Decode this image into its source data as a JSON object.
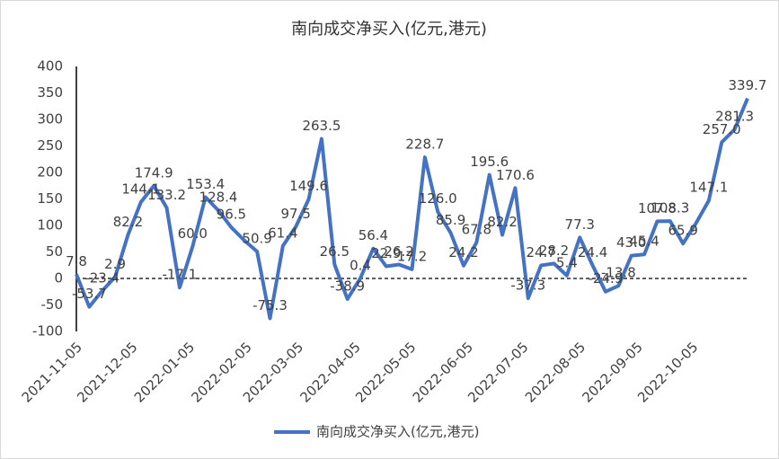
{
  "chart_data": {
    "type": "line",
    "title": "南向成交净买入(亿元,港元)",
    "x": [
      "2021-11-05",
      "2021-11-12",
      "2021-11-19",
      "2021-11-26",
      "2021-12-03",
      "2021-12-10",
      "2021-12-17",
      "2021-12-24",
      "2021-12-31",
      "2022-01-07",
      "2022-01-14",
      "2022-01-21",
      "2022-01-28",
      "2022-02-04",
      "2022-02-11",
      "2022-02-18",
      "2022-02-25",
      "2022-03-04",
      "2022-03-11",
      "2022-03-18",
      "2022-03-25",
      "2022-04-01",
      "2022-04-08",
      "2022-04-15",
      "2022-04-22",
      "2022-04-29",
      "2022-05-06",
      "2022-05-13",
      "2022-05-20",
      "2022-05-27",
      "2022-06-03",
      "2022-06-10",
      "2022-06-17",
      "2022-06-24",
      "2022-07-01",
      "2022-07-08",
      "2022-07-15",
      "2022-07-22",
      "2022-07-29",
      "2022-08-05",
      "2022-08-12",
      "2022-08-19",
      "2022-08-26",
      "2022-09-02",
      "2022-09-09",
      "2022-09-16",
      "2022-09-23",
      "2022-09-30",
      "2022-10-07",
      "2022-10-14",
      "2022-10-21",
      "2022-10-28",
      "2022-11-04"
    ],
    "series": [
      {
        "name": "南向成交净买入(亿元,港元)",
        "color": "#4472c4",
        "values": [
          7.8,
          -53.7,
          -23.4,
          2.9,
          82.2,
          144.1,
          174.9,
          133.2,
          -17.1,
          60.0,
          153.4,
          128.4,
          96.5,
          72,
          50.9,
          -75.3,
          61.4,
          97.5,
          149.6,
          263.5,
          26.5,
          -38.9,
          0.4,
          56.4,
          22.9,
          26.2,
          17.2,
          228.7,
          126.0,
          85.9,
          24.2,
          67.8,
          195.6,
          82.2,
          170.6,
          -37.3,
          24.7,
          28.2,
          5.4,
          77.3,
          24.4,
          -24.9,
          -13.8,
          43.0,
          45.4,
          107.8,
          108.3,
          65.9,
          104,
          147.1,
          257.0,
          281.3,
          339.7
        ],
        "value_labels": [
          "7.8",
          "-53.7",
          "-23.4",
          "2.9",
          "82.2",
          "144.1",
          "174.9",
          "133.2",
          "-17.1",
          "60.0",
          "153.4",
          "128.4",
          "96.5",
          null,
          "50.9",
          "-75.3",
          "61.4",
          "97.5",
          "149.6",
          "263.5",
          "26.5",
          "-38.9",
          "0.4",
          "56.4",
          "22.9",
          "26.2",
          "17.2",
          "228.7",
          "126.0",
          "85.9",
          "24.2",
          "67.8",
          "195.6",
          "82.2",
          "170.6",
          "-37.3",
          "24.7",
          "28.2",
          "5.4",
          "77.3",
          "24.4",
          "-24.9",
          "-13.8",
          "43.0",
          "45.4",
          "107.8",
          "108.3",
          "65.9",
          null,
          "147.1",
          "257.0",
          "281.3",
          "339.7"
        ]
      }
    ],
    "xlim": [
      "2021-11-05",
      "2022-11-04"
    ],
    "xticks": [
      "2021-11-05",
      "2021-12-05",
      "2022-01-05",
      "2022-02-05",
      "2022-03-05",
      "2022-04-05",
      "2022-05-05",
      "2022-06-05",
      "2022-07-05",
      "2022-08-05",
      "2022-09-05",
      "2022-10-05"
    ],
    "ylim": [
      -100,
      400
    ],
    "yticks": [
      -100,
      -50,
      0,
      50,
      100,
      150,
      200,
      250,
      300,
      350,
      400
    ],
    "legend": "bottom"
  }
}
